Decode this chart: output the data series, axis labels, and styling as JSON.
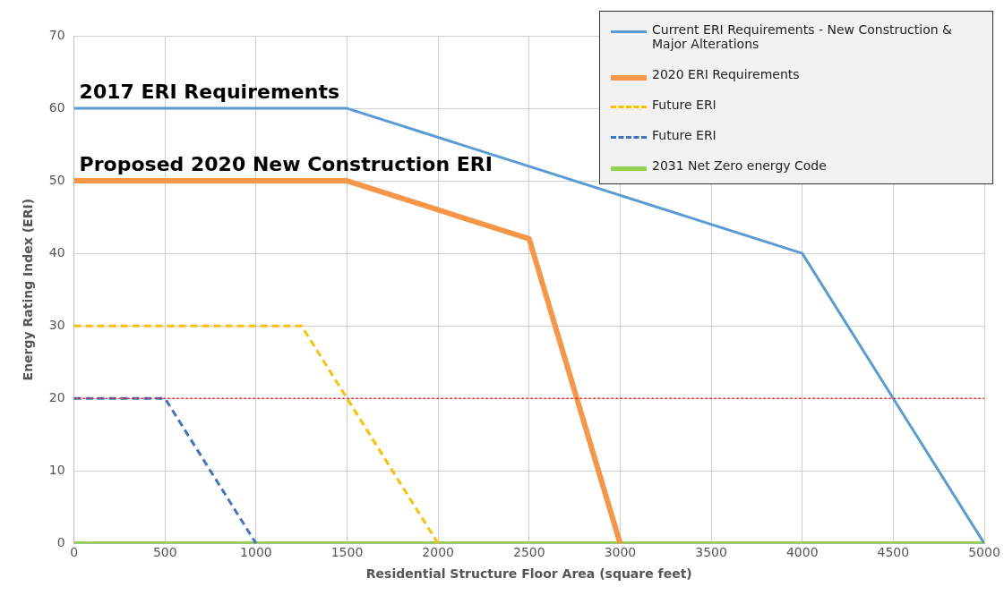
{
  "chart_data": {
    "type": "line",
    "xlabel": "Residential Structure Floor Area (square feet)",
    "ylabel": "Energy Rating Index (ERI)",
    "xlim": [
      0,
      5000
    ],
    "xticks": [
      0,
      500,
      1000,
      1500,
      2000,
      2500,
      3000,
      3500,
      4000,
      4500,
      5000
    ],
    "ylim": [
      0,
      70
    ],
    "yticks": [
      0,
      10,
      20,
      30,
      40,
      50,
      60,
      70
    ],
    "grid": true,
    "legend": "top right",
    "marker": "none",
    "series": [
      {
        "name": "Current ERI Requirements - New Construction & Major Alterations",
        "color": "#5b9bd5",
        "x": [
          0,
          1500,
          4000,
          5000
        ],
        "values": [
          60,
          60,
          40,
          0
        ],
        "line_style": "solid"
      },
      {
        "name": "2020  ERI Requirements",
        "color": "#f79646",
        "x": [
          0,
          1500,
          2500,
          3000
        ],
        "values": [
          50,
          50,
          42,
          0
        ],
        "line_style": "solid"
      },
      {
        "name": "Future ERI",
        "color": "#ffc000",
        "x": [
          0,
          1250,
          2000
        ],
        "values": [
          30,
          30,
          0
        ],
        "line_style": "dashed"
      },
      {
        "name": "Future ERI",
        "color": "#4472c4",
        "x": [
          0,
          500,
          1000
        ],
        "values": [
          20,
          20,
          0
        ],
        "line_style": "dashed"
      },
      {
        "name": "2031 Net Zero energy Code",
        "color": "#92d050",
        "x": [
          0,
          5000
        ],
        "values": [
          0,
          0
        ],
        "line_style": "solid"
      }
    ],
    "ref_lines": [
      {
        "axis": "y",
        "value": 20,
        "color": "#ff0000",
        "line_style": "dotted"
      }
    ],
    "annotations": [
      {
        "text": "2017 ERI Requirements",
        "x": 0,
        "y": 60
      },
      {
        "text": "Proposed 2020 New Construction ERI",
        "x": 0,
        "y": 50
      }
    ]
  }
}
